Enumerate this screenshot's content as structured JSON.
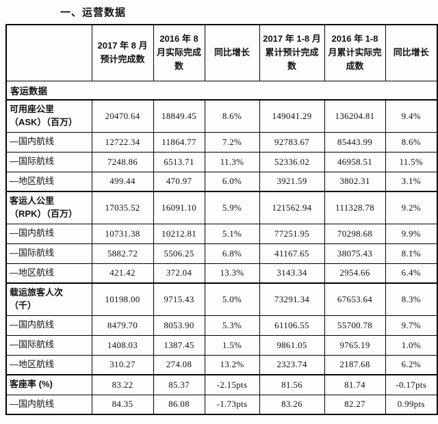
{
  "page": {
    "title": "一、运营数据"
  },
  "table": {
    "columns": [
      "",
      "2017 年 8 月预计完成数",
      "2016 年 8 月实际完成数",
      "同比增长",
      "2017 年 1-8 月累计预计完成数",
      "2016 年 1-8 月累计实际完成数",
      "同比增长"
    ],
    "section": "客运数据",
    "rows": [
      {
        "label": "可用座公里\n（ASK）（百万）",
        "group": true,
        "tall": true,
        "values": [
          "20470.64",
          "18849.45",
          "8.6%",
          "149041.29",
          "136204.81",
          "9.4%"
        ]
      },
      {
        "label": "—国内航线",
        "group": false,
        "tall": false,
        "values": [
          "12722.34",
          "11864.77",
          "7.2%",
          "92783.67",
          "85443.99",
          "8.6%"
        ]
      },
      {
        "label": "—国际航线",
        "group": false,
        "tall": false,
        "values": [
          "7248.86",
          "6513.71",
          "11.3%",
          "52336.02",
          "46958.51",
          "11.5%"
        ]
      },
      {
        "label": "—地区航线",
        "group": false,
        "tall": false,
        "values": [
          "499.44",
          "470.97",
          "6.0%",
          "3921.59",
          "3802.31",
          "3.1%"
        ]
      },
      {
        "label": "客运人公里\n（RPK）（百万）",
        "group": true,
        "tall": true,
        "values": [
          "17035.52",
          "16091.10",
          "5.9%",
          "121562.94",
          "111328.78",
          "9.2%"
        ]
      },
      {
        "label": "—国内航线",
        "group": false,
        "tall": false,
        "values": [
          "10731.38",
          "10212.81",
          "5.1%",
          "77251.95",
          "70298.68",
          "9.9%"
        ]
      },
      {
        "label": "—国际航线",
        "group": false,
        "tall": false,
        "values": [
          "5882.72",
          "5506.25",
          "6.8%",
          "41167.65",
          "38075.43",
          "8.1%"
        ]
      },
      {
        "label": "—地区航线",
        "group": false,
        "tall": false,
        "values": [
          "421.42",
          "372.04",
          "13.3%",
          "3143.34",
          "2954.66",
          "6.4%"
        ]
      },
      {
        "label": "载运旅客人次\n（千）",
        "group": true,
        "tall": true,
        "values": [
          "10198.00",
          "9715.43",
          "5.0%",
          "73291.34",
          "67653.64",
          "8.3%"
        ]
      },
      {
        "label": "—国内航线",
        "group": false,
        "tall": false,
        "values": [
          "8479.70",
          "8053.90",
          "5.3%",
          "61106.55",
          "55700.78",
          "9.7%"
        ]
      },
      {
        "label": "—国际航线",
        "group": false,
        "tall": false,
        "values": [
          "1408.03",
          "1387.45",
          "1.5%",
          "9861.05",
          "9765.19",
          "1.0%"
        ]
      },
      {
        "label": "—地区航线",
        "group": false,
        "tall": false,
        "values": [
          "310.27",
          "274.08",
          "13.2%",
          "2323.74",
          "2187.68",
          "6.2%"
        ]
      },
      {
        "label": "客座率 (%)",
        "group": true,
        "tall": false,
        "values": [
          "83.22",
          "85.37",
          "-2.15pts",
          "81.56",
          "81.74",
          "-0.17pts"
        ]
      },
      {
        "label": "—国内航线",
        "group": false,
        "tall": false,
        "values": [
          "84.35",
          "86.08",
          "-1.73pts",
          "83.26",
          "82.27",
          "0.99pts"
        ]
      }
    ]
  }
}
